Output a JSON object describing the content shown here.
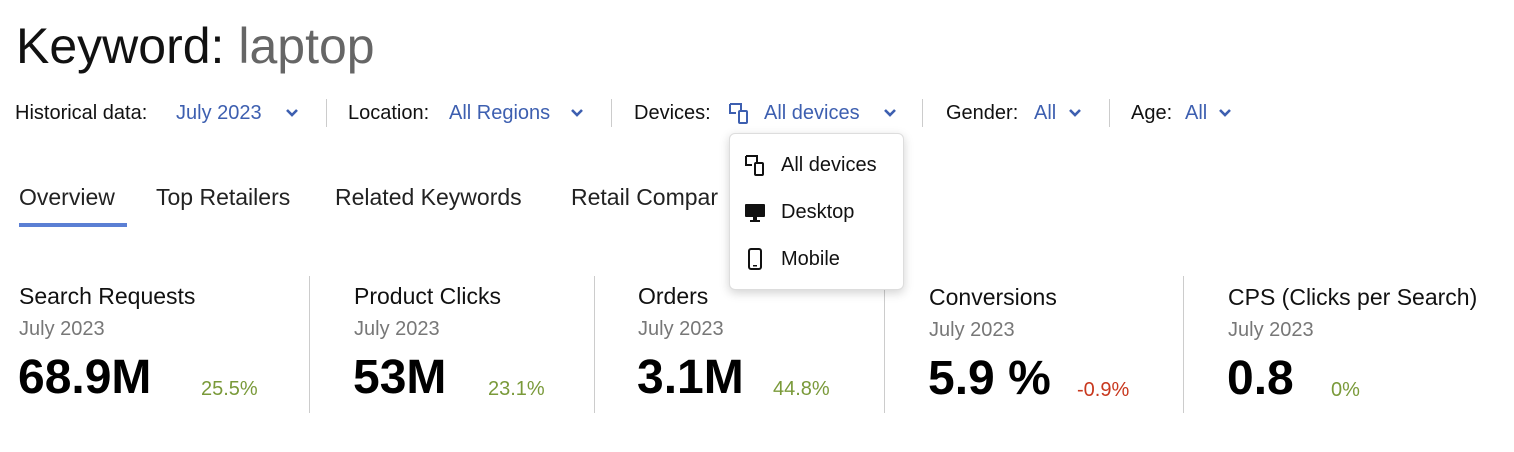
{
  "header": {
    "title_prefix": "Keyword:",
    "keyword": "laptop"
  },
  "filters": [
    {
      "label": "Historical data:",
      "value": "July 2023"
    },
    {
      "label": "Location:",
      "value": "All Regions"
    },
    {
      "label": "Devices:",
      "value": "All devices",
      "icon": "devices-icon"
    },
    {
      "label": "Gender:",
      "value": "All"
    },
    {
      "label": "Age:",
      "value": "All"
    }
  ],
  "tabs": [
    {
      "label": "Overview",
      "active": true
    },
    {
      "label": "Top Retailers"
    },
    {
      "label": "Related Keywords"
    },
    {
      "label": "Retail Compar"
    }
  ],
  "devices_menu": [
    {
      "label": "All devices",
      "icon": "devices-icon"
    },
    {
      "label": "Desktop",
      "icon": "desktop-icon"
    },
    {
      "label": "Mobile",
      "icon": "mobile-icon"
    }
  ],
  "metrics": [
    {
      "label": "Search Requests",
      "date": "July 2023",
      "value": "68.9M",
      "delta": "25.5%",
      "trend": "up"
    },
    {
      "label": "Product Clicks",
      "date": "July 2023",
      "value": "53M",
      "delta": "23.1%",
      "trend": "up"
    },
    {
      "label": "Orders",
      "date": "July 2023",
      "value": "3.1M",
      "delta": "44.8%",
      "trend": "up"
    },
    {
      "label": "Conversions",
      "date": "July 2023",
      "value": "5.9 %",
      "delta": "-0.9%",
      "trend": "down"
    },
    {
      "label": "CPS (Clicks per Search)",
      "date": "July 2023",
      "value": "0.8",
      "delta": "0%",
      "trend": "up"
    }
  ],
  "colors": {
    "accent": "#3d5fb0",
    "tab_underline": "#5b7fd4",
    "positive": "#7a9a3a",
    "negative": "#c8381e"
  }
}
